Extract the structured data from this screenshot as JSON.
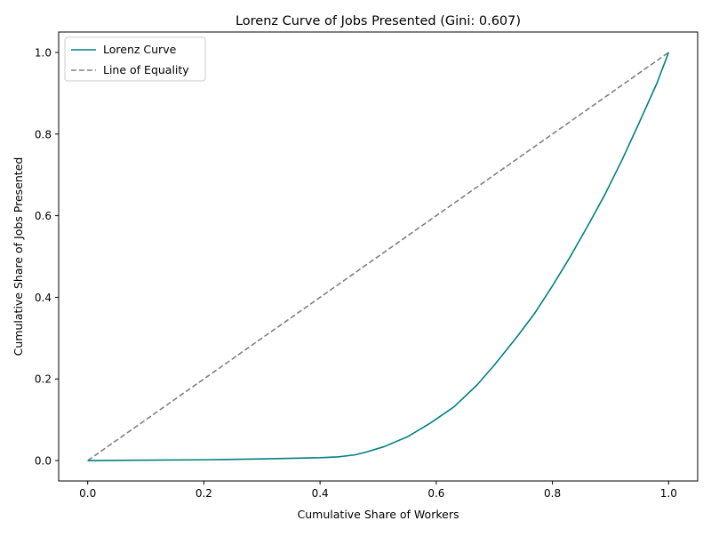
{
  "chart_data": {
    "type": "line",
    "title": "Lorenz Curve of Jobs Presented (Gini: 0.607)",
    "xlabel": "Cumulative Share of Workers",
    "ylabel": "Cumulative Share of Jobs Presented",
    "xlim": [
      -0.05,
      1.05
    ],
    "ylim": [
      -0.05,
      1.05
    ],
    "x_ticks": [
      "0.0",
      "0.2",
      "0.4",
      "0.6",
      "0.8",
      "1.0"
    ],
    "y_ticks": [
      "0.0",
      "0.2",
      "0.4",
      "0.6",
      "0.8",
      "1.0"
    ],
    "grid": false,
    "legend_position": "top-left",
    "series": [
      {
        "name": "Lorenz Curve",
        "color": "#008080",
        "style": "solid",
        "x": [
          0.0,
          0.1,
          0.2,
          0.3,
          0.4,
          0.43,
          0.46,
          0.48,
          0.51,
          0.55,
          0.59,
          0.63,
          0.67,
          0.7,
          0.74,
          0.77,
          0.8,
          0.83,
          0.86,
          0.89,
          0.92,
          0.95,
          0.98,
          1.0
        ],
        "y": [
          0.0,
          0.001,
          0.002,
          0.004,
          0.007,
          0.009,
          0.014,
          0.021,
          0.034,
          0.058,
          0.092,
          0.131,
          0.185,
          0.234,
          0.305,
          0.362,
          0.428,
          0.498,
          0.573,
          0.651,
          0.737,
          0.83,
          0.925,
          1.0
        ]
      },
      {
        "name": "Line of Equality",
        "color": "#808080",
        "style": "dashed",
        "x": [
          0.0,
          1.0
        ],
        "y": [
          0.0,
          1.0
        ]
      }
    ]
  }
}
